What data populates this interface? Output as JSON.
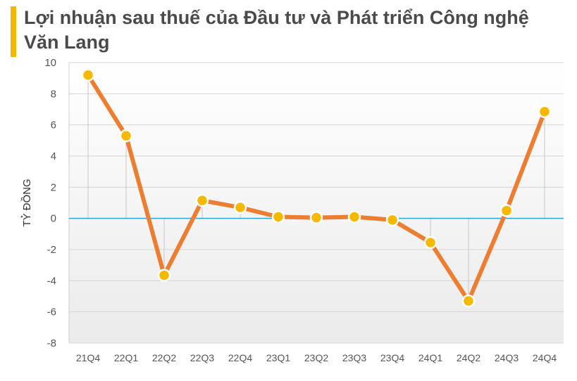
{
  "title": "Lợi nhuận sau thuế của Đầu tư và Phát triển Công nghệ Văn Lang",
  "colors": {
    "accent_bar": "#f5b800",
    "line": "#ec7d31",
    "marker": "#f7b900",
    "zero_line": "#2aa6d6"
  },
  "chart_data": {
    "type": "line",
    "title": "Lợi nhuận sau thuế của Đầu tư và Phát triển Công nghệ Văn Lang",
    "ylabel": "TỶ ĐỒNG",
    "xlabel": "",
    "ylim": [
      -8,
      10
    ],
    "yticks": [
      10,
      8,
      6,
      4,
      2,
      0,
      -2,
      -4,
      -6,
      -8
    ],
    "categories": [
      "21Q4",
      "22Q1",
      "22Q2",
      "22Q3",
      "22Q4",
      "23Q1",
      "23Q2",
      "23Q3",
      "23Q4",
      "24Q1",
      "24Q2",
      "24Q3",
      "24Q4"
    ],
    "series": [
      {
        "values": [
          9.2,
          5.3,
          -3.65,
          1.15,
          0.7,
          0.1,
          0.05,
          0.1,
          -0.1,
          -1.55,
          -5.3,
          0.5,
          6.85
        ]
      }
    ],
    "grid": true,
    "drop_lines": true
  }
}
